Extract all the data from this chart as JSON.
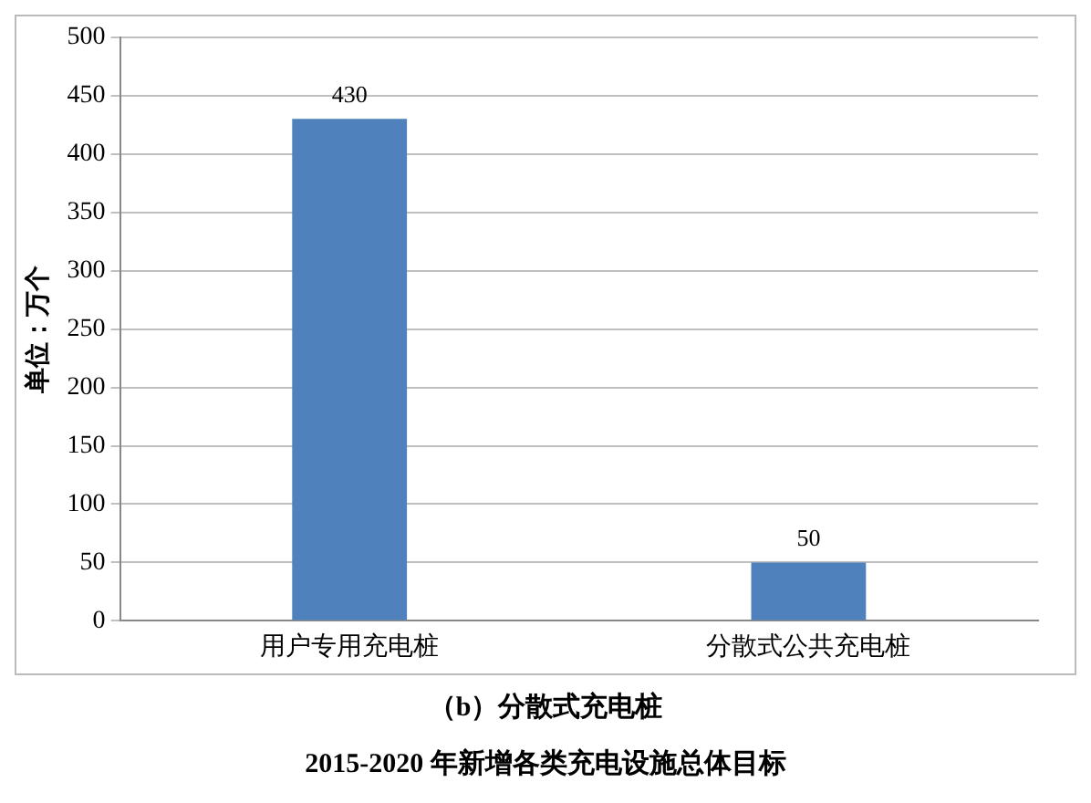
{
  "chart_data": {
    "type": "bar",
    "title": "2015-2020 年新增各类充电设施总体目标",
    "subtitle": "（b）分散式充电桩",
    "ylabel": "单位：万个",
    "categories": [
      "用户专用充电桩",
      "分散式公共充电桩"
    ],
    "values": [
      430,
      50
    ],
    "color": "#4f81bd",
    "ylim": [
      0,
      500
    ],
    "yticks": [
      0,
      50,
      100,
      150,
      200,
      250,
      300,
      350,
      400,
      450,
      500
    ],
    "grid": "y",
    "data_labels": true
  }
}
